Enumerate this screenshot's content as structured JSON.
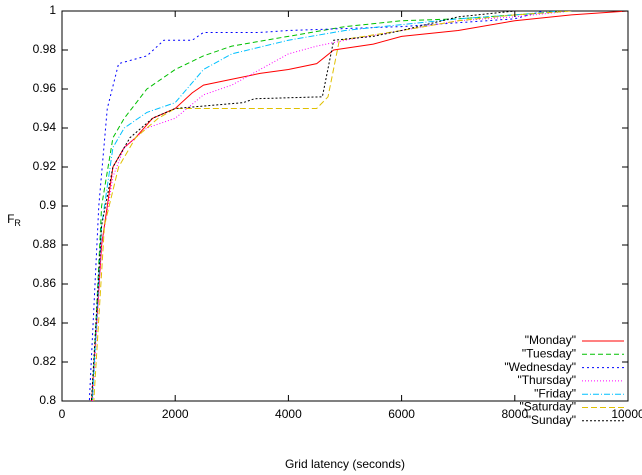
{
  "chart_data": {
    "type": "line",
    "xlabel": "Grid latency (seconds)",
    "ylabel": {
      "main": "F",
      "sub": "R"
    },
    "xlim": [
      0,
      10000
    ],
    "xticks": [
      0,
      2000,
      4000,
      6000,
      8000,
      10000
    ],
    "ylim": [
      0.8,
      1
    ],
    "yticks": [
      0.8,
      0.82,
      0.84,
      0.86,
      0.88,
      0.9,
      0.92,
      0.94,
      0.96,
      0.98,
      1
    ],
    "legend": "bottom-right",
    "series": [
      {
        "name": "\"Monday\"",
        "color": "#ff0000",
        "dash": "none",
        "x": [
          480,
          700,
          900,
          1100,
          1300,
          1600,
          2000,
          2300,
          2500,
          3000,
          3500,
          4000,
          4500,
          4800,
          5500,
          6000,
          7000,
          8000,
          9000,
          10000
        ],
        "values": [
          0.78,
          0.88,
          0.92,
          0.93,
          0.935,
          0.945,
          0.95,
          0.958,
          0.962,
          0.965,
          0.968,
          0.97,
          0.973,
          0.98,
          0.983,
          0.987,
          0.99,
          0.995,
          0.998,
          1
        ]
      },
      {
        "name": "\"Tuesday\"",
        "color": "#00c000",
        "dash": "5 3",
        "x": [
          500,
          700,
          900,
          1100,
          1500,
          2000,
          2500,
          3000,
          4000,
          5000,
          6000,
          7000,
          8000,
          9000
        ],
        "values": [
          0.78,
          0.9,
          0.935,
          0.945,
          0.96,
          0.97,
          0.977,
          0.982,
          0.987,
          0.992,
          0.995,
          0.996,
          0.998,
          1
        ]
      },
      {
        "name": "\"Wednesday\"",
        "color": "#0000ff",
        "dash": "2 3",
        "x": [
          450,
          650,
          800,
          1000,
          1500,
          1800,
          2300,
          2500,
          3500,
          4000,
          6000,
          8000,
          8500
        ],
        "values": [
          0.78,
          0.9,
          0.95,
          0.973,
          0.977,
          0.985,
          0.985,
          0.989,
          0.989,
          0.99,
          0.992,
          0.996,
          1
        ]
      },
      {
        "name": "\"Thursday\"",
        "color": "#ff00ff",
        "dash": "1 2",
        "x": [
          500,
          700,
          900,
          1100,
          1500,
          2000,
          2500,
          3000,
          3500,
          4000,
          4500,
          5000,
          6000,
          7000,
          8000,
          9000
        ],
        "values": [
          0.78,
          0.88,
          0.915,
          0.93,
          0.94,
          0.945,
          0.957,
          0.962,
          0.97,
          0.978,
          0.982,
          0.985,
          0.99,
          0.995,
          0.997,
          1
        ]
      },
      {
        "name": "\"Friday\"",
        "color": "#00c0ff",
        "dash": "6 2 1 2",
        "x": [
          500,
          700,
          900,
          1100,
          1500,
          2000,
          2500,
          3000,
          4000,
          5000,
          6000,
          7000,
          8000,
          8800
        ],
        "values": [
          0.78,
          0.89,
          0.93,
          0.94,
          0.948,
          0.953,
          0.97,
          0.978,
          0.985,
          0.99,
          0.993,
          0.996,
          0.998,
          1
        ]
      },
      {
        "name": "\"Saturday\"",
        "color": "#e0c000",
        "dash": "6 3",
        "x": [
          520,
          750,
          1000,
          1300,
          1700,
          2000,
          3000,
          4500,
          4700,
          4900,
          6000,
          7000,
          8000,
          9000
        ],
        "values": [
          0.78,
          0.89,
          0.92,
          0.935,
          0.945,
          0.95,
          0.95,
          0.95,
          0.956,
          0.985,
          0.99,
          0.995,
          0.998,
          1
        ]
      },
      {
        "name": "\"Sunday\"",
        "color": "#000000",
        "dash": "2 2",
        "x": [
          480,
          700,
          900,
          1200,
          1600,
          2000,
          3200,
          3400,
          4600,
          4800,
          5500,
          6000,
          7000,
          8000
        ],
        "values": [
          0.78,
          0.89,
          0.92,
          0.935,
          0.945,
          0.95,
          0.953,
          0.955,
          0.956,
          0.985,
          0.987,
          0.99,
          0.997,
          1
        ]
      }
    ]
  }
}
